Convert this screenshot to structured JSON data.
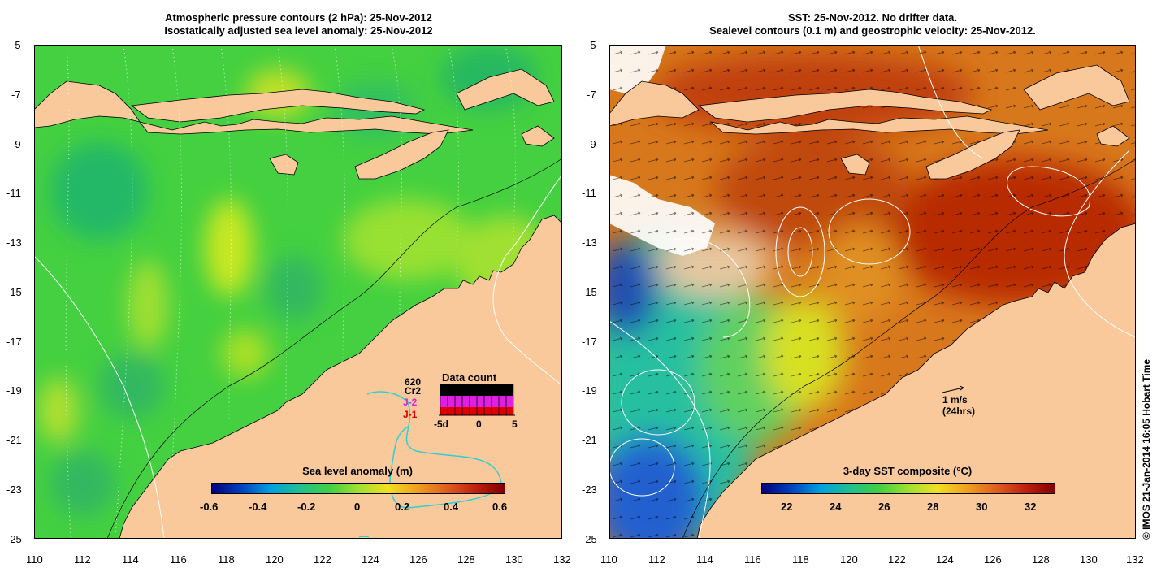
{
  "left_panel": {
    "title_line1": "Atmospheric pressure contours (2 hPa): 25-Nov-2012",
    "title_line2": "Isostatically adjusted sea level anomaly: 25-Nov-2012",
    "colorbar": {
      "label": "Sea level anomaly (m)",
      "ticks": [
        "-0.6",
        "-0.4",
        "-0.2",
        "0",
        "0.2",
        "0.4",
        "0.6"
      ],
      "range": [
        -0.6,
        0.6
      ]
    },
    "data_count": {
      "title": "Data count",
      "legend": [
        {
          "label": "620",
          "color": "#000000"
        },
        {
          "label": "Cr2",
          "color": "#000000"
        },
        {
          "label": "J-2",
          "color": "#e020e0"
        },
        {
          "label": "J-1",
          "color": "#e00000"
        }
      ],
      "xticks": [
        "-5d",
        "0",
        "5"
      ]
    }
  },
  "right_panel": {
    "title_line1": "SST: 25-Nov-2012. No drifter data.",
    "title_line2": "Sealevel contours (0.1 m) and geostrophic velocity: 25-Nov-2012.",
    "colorbar": {
      "label": "3-day SST composite (°C)",
      "ticks": [
        "22",
        "24",
        "26",
        "28",
        "30",
        "32"
      ],
      "range": [
        21,
        33
      ]
    },
    "velocity_scale": {
      "line1": "1 m/s",
      "line2": "(24hrs)"
    }
  },
  "axes": {
    "x_ticks": [
      "110",
      "112",
      "114",
      "116",
      "118",
      "120",
      "122",
      "124",
      "126",
      "128",
      "130",
      "132"
    ],
    "y_ticks": [
      "-5",
      "-7",
      "-9",
      "-11",
      "-13",
      "-15",
      "-17",
      "-19",
      "-21",
      "-23",
      "-25"
    ],
    "lon_range": [
      110,
      132
    ],
    "lat_range": [
      -5,
      -25
    ]
  },
  "credit": "© IMOS 21-Jan-2014 16:05 Hobart Time",
  "colors": {
    "land": "#f9c89b",
    "sla_ocean": "#3cd43c",
    "sst_warm": "#d06010",
    "sst_hot": "#b02000",
    "sst_cool": "#20c0a0",
    "sst_cold": "#2060d0",
    "altimeter_track": "#30d0d0"
  }
}
